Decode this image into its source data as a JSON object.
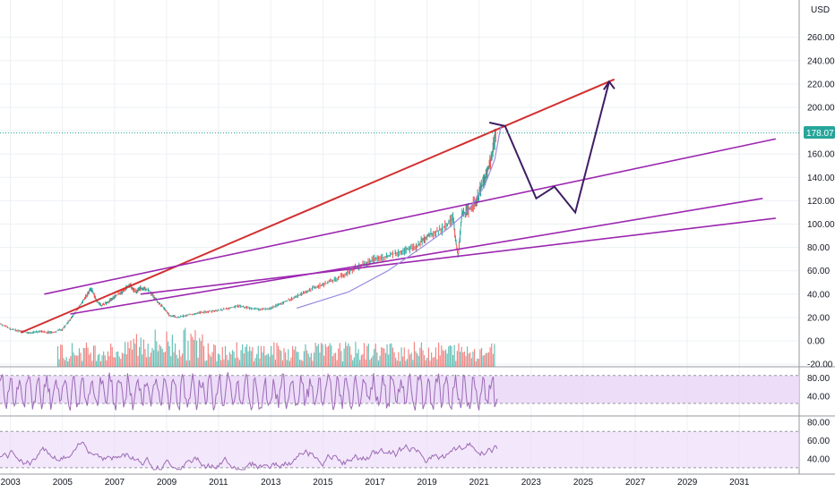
{
  "chart_data": {
    "type": "line",
    "currency": "USD",
    "last_price": "178.07",
    "x_ticks": [
      "2003",
      "2005",
      "2007",
      "2009",
      "2011",
      "2013",
      "2015",
      "2017",
      "2019",
      "2021",
      "2023",
      "2025",
      "2027",
      "2029",
      "2031"
    ],
    "y_ticks": [
      "260.00",
      "240.00",
      "220.00",
      "200.00",
      "180.00",
      "160.00",
      "140.00",
      "120.00",
      "100.00",
      "80.00",
      "60.00",
      "40.00",
      "20.00",
      "0.00",
      "-20.00"
    ],
    "price_ylim": [
      -20,
      280
    ],
    "x_range": [
      2002.6,
      2033.3
    ],
    "price_series": [
      [
        2002.6,
        15
      ],
      [
        2003.0,
        10
      ],
      [
        2003.4,
        8
      ],
      [
        2003.8,
        7
      ],
      [
        2004.2,
        8
      ],
      [
        2004.6,
        7
      ],
      [
        2005.0,
        10
      ],
      [
        2005.3,
        18
      ],
      [
        2005.6,
        28
      ],
      [
        2005.9,
        38
      ],
      [
        2006.1,
        45
      ],
      [
        2006.3,
        35
      ],
      [
        2006.5,
        30
      ],
      [
        2006.8,
        34
      ],
      [
        2007.0,
        38
      ],
      [
        2007.3,
        42
      ],
      [
        2007.6,
        48
      ],
      [
        2007.8,
        42
      ],
      [
        2008.0,
        45
      ],
      [
        2008.3,
        44
      ],
      [
        2008.6,
        35
      ],
      [
        2008.9,
        28
      ],
      [
        2009.1,
        22
      ],
      [
        2009.4,
        20
      ],
      [
        2009.8,
        22
      ],
      [
        2010.2,
        24
      ],
      [
        2010.6,
        25
      ],
      [
        2011.0,
        26
      ],
      [
        2011.4,
        28
      ],
      [
        2011.8,
        30
      ],
      [
        2012.2,
        28
      ],
      [
        2012.6,
        27
      ],
      [
        2013.0,
        28
      ],
      [
        2013.4,
        32
      ],
      [
        2013.8,
        36
      ],
      [
        2014.2,
        40
      ],
      [
        2014.6,
        45
      ],
      [
        2015.0,
        48
      ],
      [
        2015.4,
        52
      ],
      [
        2015.8,
        56
      ],
      [
        2016.2,
        62
      ],
      [
        2016.6,
        66
      ],
      [
        2017.0,
        70
      ],
      [
        2017.4,
        72
      ],
      [
        2017.8,
        75
      ],
      [
        2018.2,
        78
      ],
      [
        2018.6,
        80
      ],
      [
        2018.9,
        88
      ],
      [
        2019.2,
        92
      ],
      [
        2019.6,
        96
      ],
      [
        2020.0,
        105
      ],
      [
        2020.2,
        72
      ],
      [
        2020.35,
        108
      ],
      [
        2020.6,
        112
      ],
      [
        2020.9,
        120
      ],
      [
        2021.1,
        132
      ],
      [
        2021.3,
        142
      ],
      [
        2021.5,
        160
      ],
      [
        2021.65,
        178
      ]
    ],
    "resistance_line": [
      [
        2003.4,
        7
      ],
      [
        2026.2,
        224
      ]
    ],
    "parallel_lines": [
      [
        [
          2004.3,
          40
        ],
        [
          2032.4,
          173
        ]
      ],
      [
        [
          2005.3,
          23
        ],
        [
          2031.9,
          122
        ]
      ],
      [
        [
          2008.0,
          40
        ],
        [
          2032.4,
          105
        ]
      ]
    ],
    "projection_path": [
      [
        2021.4,
        187
      ],
      [
        2022.0,
        184
      ],
      [
        2023.2,
        122
      ],
      [
        2023.9,
        132
      ],
      [
        2024.7,
        110
      ],
      [
        2026.0,
        222
      ]
    ],
    "curve_path": [
      [
        2014.0,
        28
      ],
      [
        2016.0,
        42
      ],
      [
        2017.5,
        60
      ],
      [
        2018.8,
        80
      ],
      [
        2019.8,
        96
      ],
      [
        2020.6,
        112
      ],
      [
        2021.2,
        132
      ],
      [
        2021.6,
        155
      ],
      [
        2021.85,
        185
      ]
    ],
    "osc1_ticks": [
      "80.00",
      "40.00"
    ],
    "osc1_ylim": [
      0,
      100
    ],
    "osc1_band": [
      25,
      85
    ],
    "osc2_ticks": [
      "80.00",
      "60.00",
      "40.00"
    ],
    "osc2_ylim": [
      25,
      85
    ],
    "osc2_band": [
      30,
      70
    ],
    "colors": {
      "trend_red": "#d32f2f",
      "trend_purple": "#9c27b0",
      "projection": "#3f1d63",
      "curve": "#9c8ee0",
      "up_candle": "#26a69a",
      "down_candle": "#ef5350",
      "osc_line": "#9c6ab5",
      "osc_band": "#e9d5f7"
    }
  }
}
